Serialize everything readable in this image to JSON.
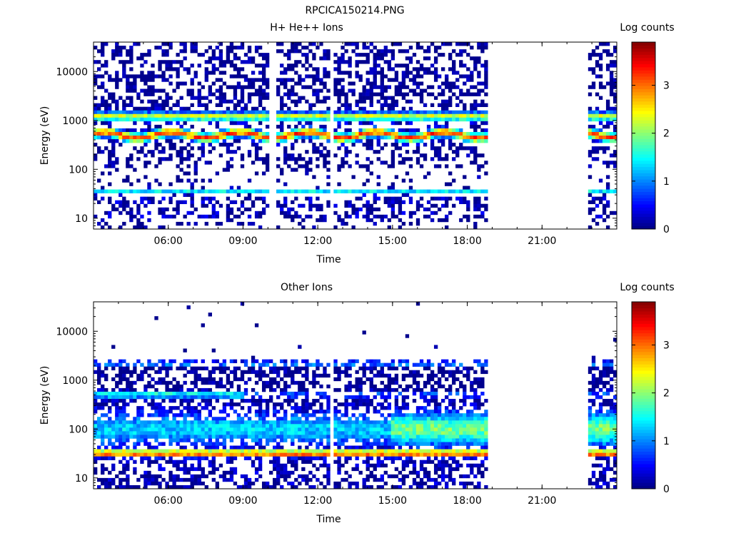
{
  "figure": {
    "title": "RPCICA150214.PNG"
  },
  "chart_data": [
    {
      "type": "heatmap",
      "title": "H+ He++ Ions",
      "xlabel": "Time",
      "ylabel": "Energy (eV)",
      "y_scale": "log",
      "x_range_hours": [
        3.0,
        24.0
      ],
      "y_range": [
        6,
        40000
      ],
      "x_ticks": [
        {
          "value": 6,
          "label": "06:00"
        },
        {
          "value": 9,
          "label": "09:00"
        },
        {
          "value": 12,
          "label": "12:00"
        },
        {
          "value": 15,
          "label": "15:00"
        },
        {
          "value": 18,
          "label": "18:00"
        },
        {
          "value": 21,
          "label": "21:00"
        }
      ],
      "y_ticks": [
        {
          "value": 10,
          "label": "10"
        },
        {
          "value": 100,
          "label": "100"
        },
        {
          "value": 1000,
          "label": "1000"
        },
        {
          "value": 10000,
          "label": "10000"
        }
      ],
      "colorbar": {
        "label": "Log counts",
        "range": [
          0,
          3.9
        ],
        "ticks": [
          {
            "value": 0,
            "label": "0"
          },
          {
            "value": 1,
            "label": "1"
          },
          {
            "value": 2,
            "label": "2"
          },
          {
            "value": 3,
            "label": "3"
          }
        ]
      },
      "data_coverage_hours": [
        [
          3.0,
          18.8
        ],
        [
          22.9,
          24.0
        ]
      ],
      "gaps_hours": [
        [
          10.0,
          10.3
        ],
        [
          12.5,
          12.6
        ],
        [
          14.9,
          15.0
        ]
      ],
      "features": [
        {
          "energy_ev": 500,
          "log_counts": 3.2
        },
        {
          "energy_ev": 1200,
          "log_counts": 2.3
        },
        {
          "energy_ev": 35,
          "log_counts": 1.4
        }
      ]
    },
    {
      "type": "heatmap",
      "title": "Other Ions",
      "xlabel": "Time",
      "ylabel": "Energy (eV)",
      "y_scale": "log",
      "x_range_hours": [
        3.0,
        24.0
      ],
      "y_range": [
        6,
        40000
      ],
      "x_ticks": [
        {
          "value": 6,
          "label": "06:00"
        },
        {
          "value": 9,
          "label": "09:00"
        },
        {
          "value": 12,
          "label": "12:00"
        },
        {
          "value": 15,
          "label": "15:00"
        },
        {
          "value": 18,
          "label": "18:00"
        },
        {
          "value": 21,
          "label": "21:00"
        }
      ],
      "y_ticks": [
        {
          "value": 10,
          "label": "10"
        },
        {
          "value": 100,
          "label": "100"
        },
        {
          "value": 1000,
          "label": "1000"
        },
        {
          "value": 10000,
          "label": "10000"
        }
      ],
      "colorbar": {
        "label": "Log counts",
        "range": [
          0,
          3.9
        ],
        "ticks": [
          {
            "value": 0,
            "label": "0"
          },
          {
            "value": 1,
            "label": "1"
          },
          {
            "value": 2,
            "label": "2"
          },
          {
            "value": 3,
            "label": "3"
          }
        ]
      },
      "data_coverage_hours": [
        [
          3.0,
          18.8
        ],
        [
          22.9,
          24.0
        ]
      ],
      "gaps_hours": [
        [
          12.5,
          12.6
        ],
        [
          14.9,
          15.0
        ]
      ],
      "features": [
        {
          "energy_ev": 32,
          "log_counts": 3.4
        },
        {
          "energy_ev": 100,
          "log_counts": 1.6
        },
        {
          "energy_ev": 500,
          "log_counts": 1.8
        },
        {
          "energy_ev": 2200,
          "log_counts": 1.2
        }
      ]
    }
  ]
}
